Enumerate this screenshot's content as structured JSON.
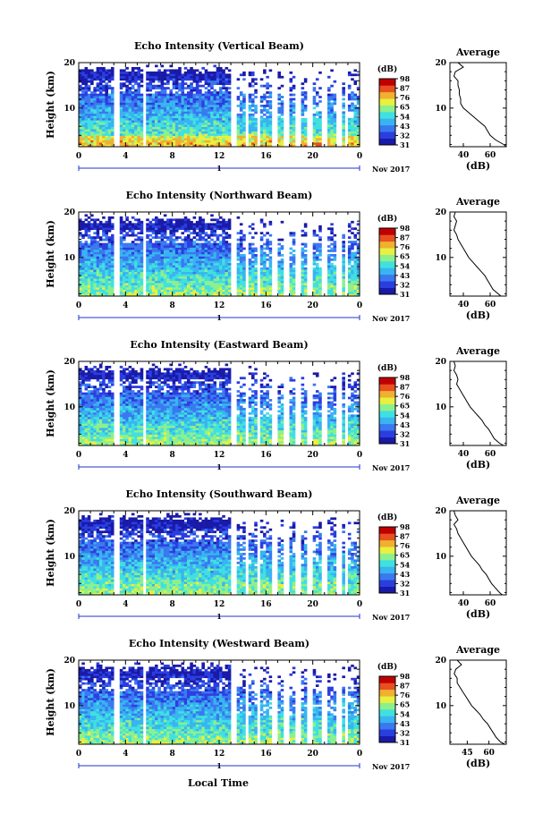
{
  "figure": {
    "xlabel": "Local Time",
    "date_label": "Nov 2017",
    "day_label": "1",
    "colorbar_unit": "(dB)",
    "colorbar_ticks": [
      "31",
      "32",
      "43",
      "54",
      "65",
      "76",
      "87",
      "98"
    ],
    "colormap": [
      "#1a1aa8",
      "#2a3ee0",
      "#3a78f0",
      "#38b4f0",
      "#40e0e0",
      "#8cf08c",
      "#e8f040",
      "#f0b030",
      "#e85020",
      "#c00000"
    ]
  },
  "chart_data": [
    {
      "type": "heatmap",
      "title": "Echo Intensity (Vertical Beam)",
      "xlabel": "",
      "ylabel": "Height (km)",
      "x_ticks": [
        "0",
        "4",
        "8",
        "12",
        "16",
        "20",
        "0"
      ],
      "y_ticks": [
        "10",
        "20"
      ],
      "xlim": [
        0,
        24
      ],
      "ylim": [
        1.5,
        20
      ],
      "clim": [
        31,
        98
      ],
      "profile": {
        "title": "Average",
        "xlabel": "(dB)",
        "x_ticks": [
          "40",
          "60"
        ],
        "y_ticks": [
          "10",
          "20"
        ],
        "xlim": [
          30,
          72
        ],
        "height": [
          20,
          19,
          18,
          17,
          16,
          15,
          14,
          13,
          12,
          11,
          10,
          9,
          8,
          7,
          6,
          5,
          4,
          3,
          2,
          1.5
        ],
        "value": [
          36,
          40,
          34,
          33,
          36,
          36,
          37,
          37,
          38,
          38,
          40,
          44,
          48,
          52,
          56,
          58,
          60,
          64,
          70,
          72
        ]
      }
    },
    {
      "type": "heatmap",
      "title": "Echo Intensity (Northward Beam)",
      "xlabel": "",
      "ylabel": "Height (km)",
      "x_ticks": [
        "0",
        "4",
        "8",
        "12",
        "16",
        "20",
        "0"
      ],
      "y_ticks": [
        "10",
        "20"
      ],
      "xlim": [
        0,
        24
      ],
      "ylim": [
        1.5,
        20
      ],
      "clim": [
        31,
        98
      ],
      "profile": {
        "title": "Average",
        "xlabel": "(dB)",
        "x_ticks": [
          "40",
          "60"
        ],
        "y_ticks": [
          "10",
          "20"
        ],
        "xlim": [
          30,
          72
        ],
        "height": [
          20,
          19,
          18,
          17,
          16,
          15,
          14,
          13,
          12,
          11,
          10,
          9,
          8,
          7,
          6,
          5,
          4,
          3,
          2,
          1.5
        ],
        "value": [
          34,
          33,
          35,
          34,
          33,
          35,
          36,
          38,
          40,
          42,
          44,
          47,
          50,
          53,
          56,
          58,
          60,
          62,
          66,
          68
        ]
      }
    },
    {
      "type": "heatmap",
      "title": "Echo Intensity (Eastward Beam)",
      "xlabel": "",
      "ylabel": "Height (km)",
      "x_ticks": [
        "0",
        "4",
        "8",
        "12",
        "16",
        "20",
        "0"
      ],
      "y_ticks": [
        "10",
        "20"
      ],
      "xlim": [
        0,
        24
      ],
      "ylim": [
        1.5,
        20
      ],
      "clim": [
        31,
        98
      ],
      "profile": {
        "title": "Average",
        "xlabel": "(dB)",
        "x_ticks": [
          "40",
          "60"
        ],
        "y_ticks": [
          "10",
          "20"
        ],
        "xlim": [
          30,
          72
        ],
        "height": [
          20,
          19,
          18,
          17,
          16,
          15,
          14,
          13,
          12,
          11,
          10,
          9,
          8,
          7,
          6,
          5,
          4,
          3,
          2,
          1.5
        ],
        "value": [
          33,
          34,
          33,
          35,
          36,
          35,
          37,
          39,
          41,
          43,
          45,
          48,
          51,
          54,
          56,
          59,
          61,
          63,
          67,
          70
        ]
      }
    },
    {
      "type": "heatmap",
      "title": "Echo Intensity (Southward Beam)",
      "xlabel": "",
      "ylabel": "Height (km)",
      "x_ticks": [
        "0",
        "4",
        "8",
        "12",
        "16",
        "20",
        "0"
      ],
      "y_ticks": [
        "10",
        "20"
      ],
      "xlim": [
        0,
        24
      ],
      "ylim": [
        1.5,
        20
      ],
      "clim": [
        31,
        98
      ],
      "profile": {
        "title": "Average",
        "xlabel": "(dB)",
        "x_ticks": [
          "40",
          "60"
        ],
        "y_ticks": [
          "10",
          "20"
        ],
        "xlim": [
          30,
          72
        ],
        "height": [
          20,
          19,
          18,
          17,
          16,
          15,
          14,
          13,
          12,
          11,
          10,
          9,
          8,
          7,
          6,
          5,
          4,
          3,
          2,
          1.5
        ],
        "value": [
          33,
          34,
          36,
          33,
          35,
          36,
          38,
          40,
          42,
          44,
          46,
          49,
          52,
          54,
          57,
          59,
          61,
          64,
          67,
          69
        ]
      }
    },
    {
      "type": "heatmap",
      "title": "Echo Intensity (Westward Beam)",
      "xlabel": "",
      "ylabel": "Height (km)",
      "x_ticks": [
        "0",
        "4",
        "8",
        "12",
        "16",
        "20",
        "0"
      ],
      "y_ticks": [
        "10",
        "20"
      ],
      "xlim": [
        0,
        24
      ],
      "ylim": [
        1.5,
        20
      ],
      "clim": [
        31,
        98
      ],
      "profile": {
        "title": "Average",
        "xlabel": "(dB)",
        "x_ticks": [
          "45",
          "60"
        ],
        "y_ticks": [
          "10",
          "20"
        ],
        "xlim": [
          33,
          72
        ],
        "height": [
          20,
          19,
          18,
          17,
          16,
          15,
          14,
          13,
          12,
          11,
          10,
          9,
          8,
          7,
          6,
          5,
          4,
          3,
          2,
          1.5
        ],
        "value": [
          38,
          41,
          37,
          36,
          38,
          38,
          40,
          42,
          44,
          46,
          48,
          51,
          54,
          56,
          59,
          61,
          63,
          65,
          68,
          71
        ]
      }
    }
  ]
}
